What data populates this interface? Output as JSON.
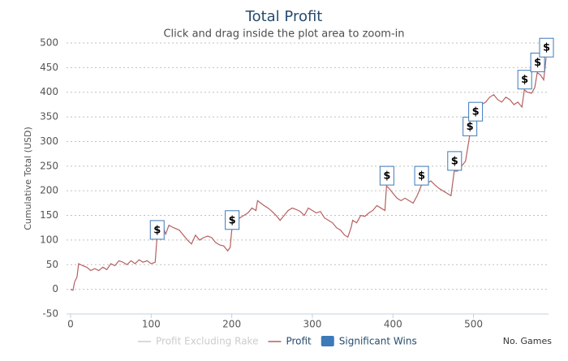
{
  "chart_data": {
    "type": "line",
    "title": "Total Profit",
    "subtitle": "Click and drag inside the plot area to zoom-in",
    "y_label": "Cumulative Total (USD)",
    "x_label": "No. Games",
    "xlim": [
      -5,
      593
    ],
    "ylim": [
      -50,
      500
    ],
    "xticks": [
      0,
      100,
      200,
      300,
      400,
      500
    ],
    "yticks": [
      -50,
      0,
      50,
      100,
      150,
      200,
      250,
      300,
      350,
      400,
      450,
      500
    ],
    "grid": true,
    "x": [
      0,
      3,
      5,
      8,
      10,
      15,
      20,
      25,
      30,
      35,
      40,
      45,
      50,
      55,
      60,
      65,
      70,
      75,
      80,
      85,
      90,
      95,
      100,
      105,
      107,
      110,
      115,
      118,
      122,
      128,
      135,
      140,
      145,
      150,
      155,
      160,
      165,
      170,
      175,
      180,
      185,
      190,
      195,
      198,
      200,
      203,
      207,
      210,
      215,
      220,
      225,
      230,
      232,
      236,
      240,
      245,
      250,
      255,
      260,
      265,
      270,
      275,
      280,
      285,
      290,
      295,
      300,
      305,
      310,
      315,
      320,
      325,
      330,
      335,
      340,
      344,
      348,
      350,
      355,
      360,
      365,
      370,
      375,
      380,
      385,
      390,
      392,
      395,
      400,
      405,
      410,
      415,
      420,
      425,
      430,
      435,
      438,
      442,
      447,
      452,
      457,
      462,
      467,
      472,
      476,
      480,
      485,
      490,
      495,
      498,
      502,
      505,
      510,
      515,
      520,
      525,
      530,
      535,
      540,
      545,
      550,
      555,
      560,
      563,
      567,
      572,
      576,
      579,
      583,
      587,
      590
    ],
    "series": [
      {
        "name": "Profit Excluding Rake",
        "color": "#cccccc",
        "visible": false
      },
      {
        "name": "Profit",
        "color": "#b5605f",
        "visible": true,
        "values": [
          0,
          -2,
          15,
          25,
          52,
          48,
          45,
          38,
          42,
          38,
          45,
          40,
          52,
          48,
          58,
          55,
          50,
          58,
          52,
          60,
          55,
          58,
          52,
          55,
          100,
          118,
          125,
          112,
          130,
          125,
          120,
          110,
          100,
          92,
          110,
          100,
          105,
          108,
          105,
          95,
          90,
          88,
          78,
          85,
          120,
          130,
          140,
          145,
          150,
          155,
          165,
          160,
          180,
          175,
          170,
          165,
          158,
          150,
          140,
          150,
          160,
          165,
          162,
          158,
          150,
          165,
          160,
          155,
          158,
          145,
          140,
          135,
          125,
          120,
          110,
          106,
          125,
          140,
          135,
          150,
          148,
          155,
          160,
          170,
          165,
          160,
          210,
          205,
          195,
          185,
          180,
          185,
          180,
          175,
          190,
          210,
          225,
          215,
          220,
          212,
          205,
          200,
          195,
          190,
          240,
          240,
          250,
          260,
          310,
          330,
          340,
          365,
          375,
          380,
          390,
          395,
          385,
          380,
          390,
          385,
          375,
          380,
          370,
          405,
          400,
          398,
          410,
          440,
          435,
          425,
          470
        ]
      }
    ],
    "flags": {
      "name": "Significant Wins",
      "color": "#3d7ab8",
      "text": "$",
      "x": [
        107,
        200,
        392,
        435,
        476,
        495,
        502,
        563,
        579,
        590
      ]
    }
  }
}
